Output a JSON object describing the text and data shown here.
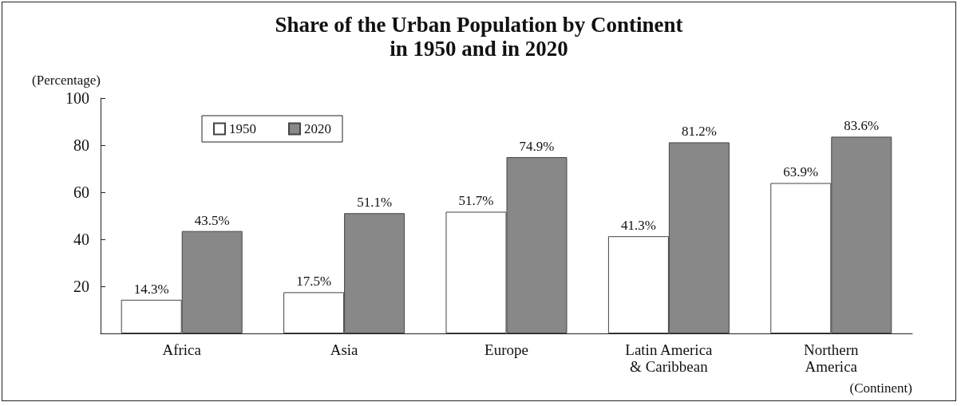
{
  "chart_data": {
    "type": "bar",
    "title": "Share of the Urban Population by Continent\nin 1950 and in 2020",
    "ylabel": "(Percentage)",
    "xlabel": "(Continent)",
    "categories": [
      "Africa",
      "Asia",
      "Europe",
      "Latin America\n& Caribbean",
      "Northern\nAmerica"
    ],
    "series": [
      {
        "name": "1950",
        "color": "#ffffff",
        "values": [
          14.3,
          17.5,
          51.7,
          41.3,
          63.9
        ],
        "value_labels": [
          "14.3%",
          "17.5%",
          "51.7%",
          "41.3%",
          "63.9%"
        ]
      },
      {
        "name": "2020",
        "color": "#888888",
        "values": [
          43.5,
          51.1,
          74.9,
          81.2,
          83.6
        ],
        "value_labels": [
          "43.5%",
          "51.1%",
          "74.9%",
          "81.2%",
          "83.6%"
        ]
      }
    ],
    "ylim": [
      0,
      100
    ],
    "yticks": [
      20,
      40,
      60,
      80,
      100
    ],
    "grid": false,
    "legend": "top left"
  }
}
